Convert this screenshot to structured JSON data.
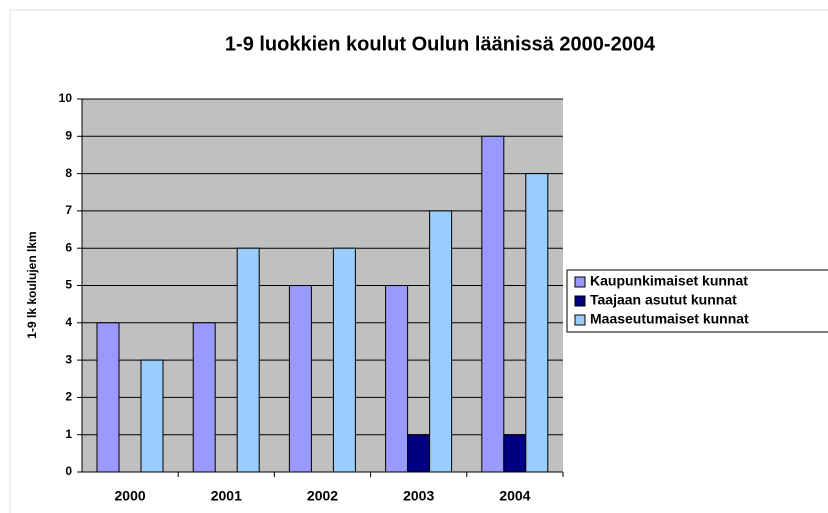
{
  "chart_data": {
    "type": "bar",
    "title": "1-9 luokkien koulut Oulun läänissä 2000-2004",
    "y_label": "1-9 lk koulujen lkm",
    "categories": [
      "2000",
      "2001",
      "2002",
      "2003",
      "2004"
    ],
    "series": [
      {
        "name": "Kaupunkimaiset kunnat",
        "color": "#9999ff",
        "values": [
          4,
          4,
          5,
          5,
          9
        ]
      },
      {
        "name": "Taajaan asutut kunnat",
        "color": "#000080",
        "values": [
          0,
          0,
          0,
          1,
          1
        ]
      },
      {
        "name": "Maaseutumaiset kunnat",
        "color": "#99ccff",
        "values": [
          3,
          6,
          6,
          7,
          8
        ]
      }
    ],
    "ylim": [
      0,
      10
    ],
    "yticks": [
      0,
      1,
      2,
      3,
      4,
      5,
      6,
      7,
      8,
      9,
      10
    ],
    "grid": true,
    "legend": "right"
  }
}
